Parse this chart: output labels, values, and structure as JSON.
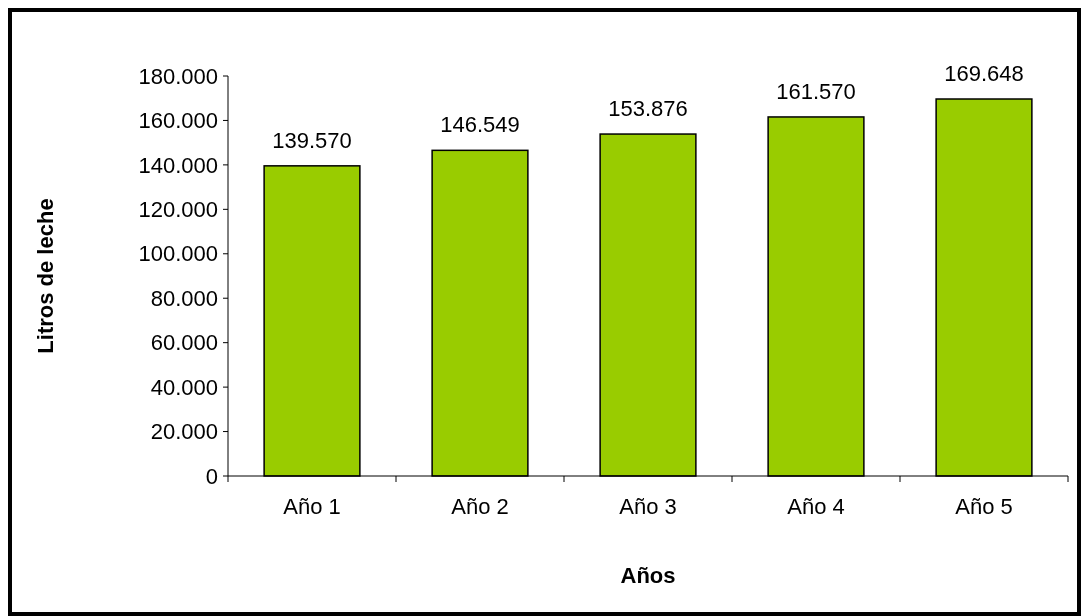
{
  "chart_data": {
    "type": "bar",
    "xlabel": "Años",
    "ylabel": "Litros de leche",
    "categories": [
      "Año 1",
      "Año 2",
      "Año 3",
      "Año 4",
      "Año 5"
    ],
    "values": [
      139570,
      146549,
      153876,
      161570,
      169648
    ],
    "value_labels": [
      "139.570",
      "146.549",
      "153.876",
      "161.570",
      "169.648"
    ],
    "color": "#99cc00",
    "ylim": [
      0,
      180000
    ],
    "yticks": [
      {
        "value": 0,
        "label": "0"
      },
      {
        "value": 20000,
        "label": "20.000"
      },
      {
        "value": 40000,
        "label": "40.000"
      },
      {
        "value": 60000,
        "label": "60.000"
      },
      {
        "value": 80000,
        "label": "80.000"
      },
      {
        "value": 100000,
        "label": "100.000"
      },
      {
        "value": 120000,
        "label": "120.000"
      },
      {
        "value": 140000,
        "label": "140.000"
      },
      {
        "value": 160000,
        "label": "160.000"
      },
      {
        "value": 180000,
        "label": "180.000"
      }
    ],
    "grid": false
  }
}
